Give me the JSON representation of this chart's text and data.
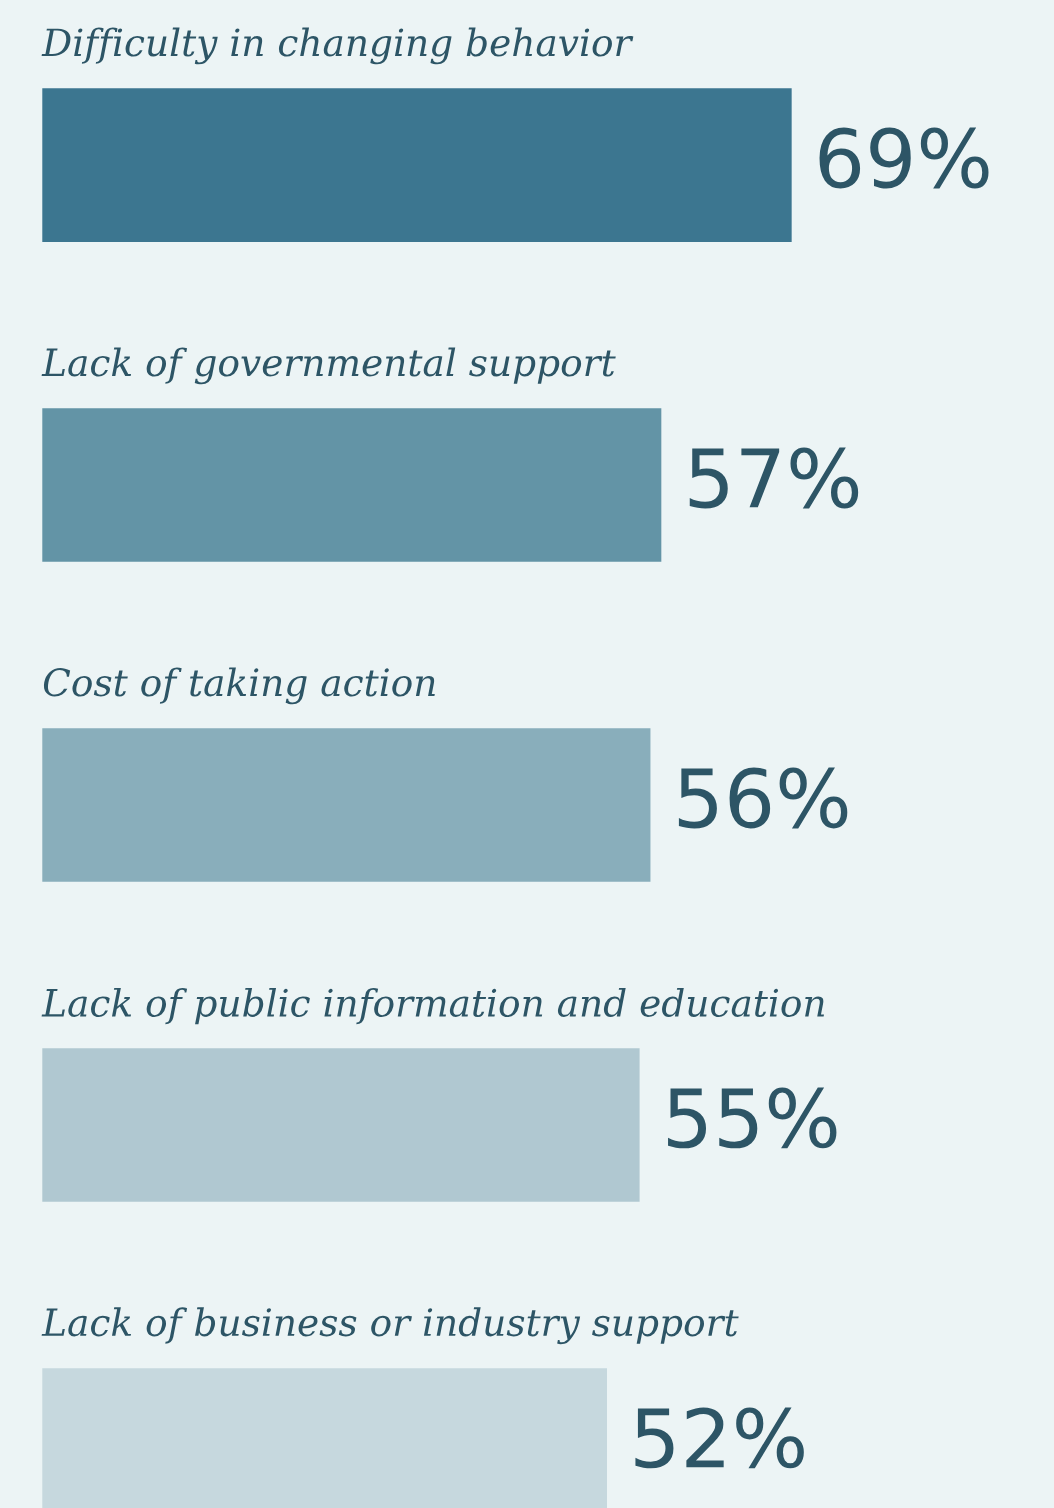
{
  "chart_data": {
    "type": "bar",
    "orientation": "horizontal",
    "value_labels": [
      "69%",
      "57%",
      "56%",
      "55%",
      "52%"
    ],
    "categories": [
      "Difficulty in changing behavior",
      "Lack of governmental support",
      "Cost of taking action",
      "Lack of public information and education",
      "Lack of business or industry support"
    ],
    "values": [
      69,
      57,
      56,
      55,
      52
    ],
    "colors": [
      "#3c7690",
      "#6394a6",
      "#89aebb",
      "#b0c8d1",
      "#c6d8de"
    ]
  }
}
